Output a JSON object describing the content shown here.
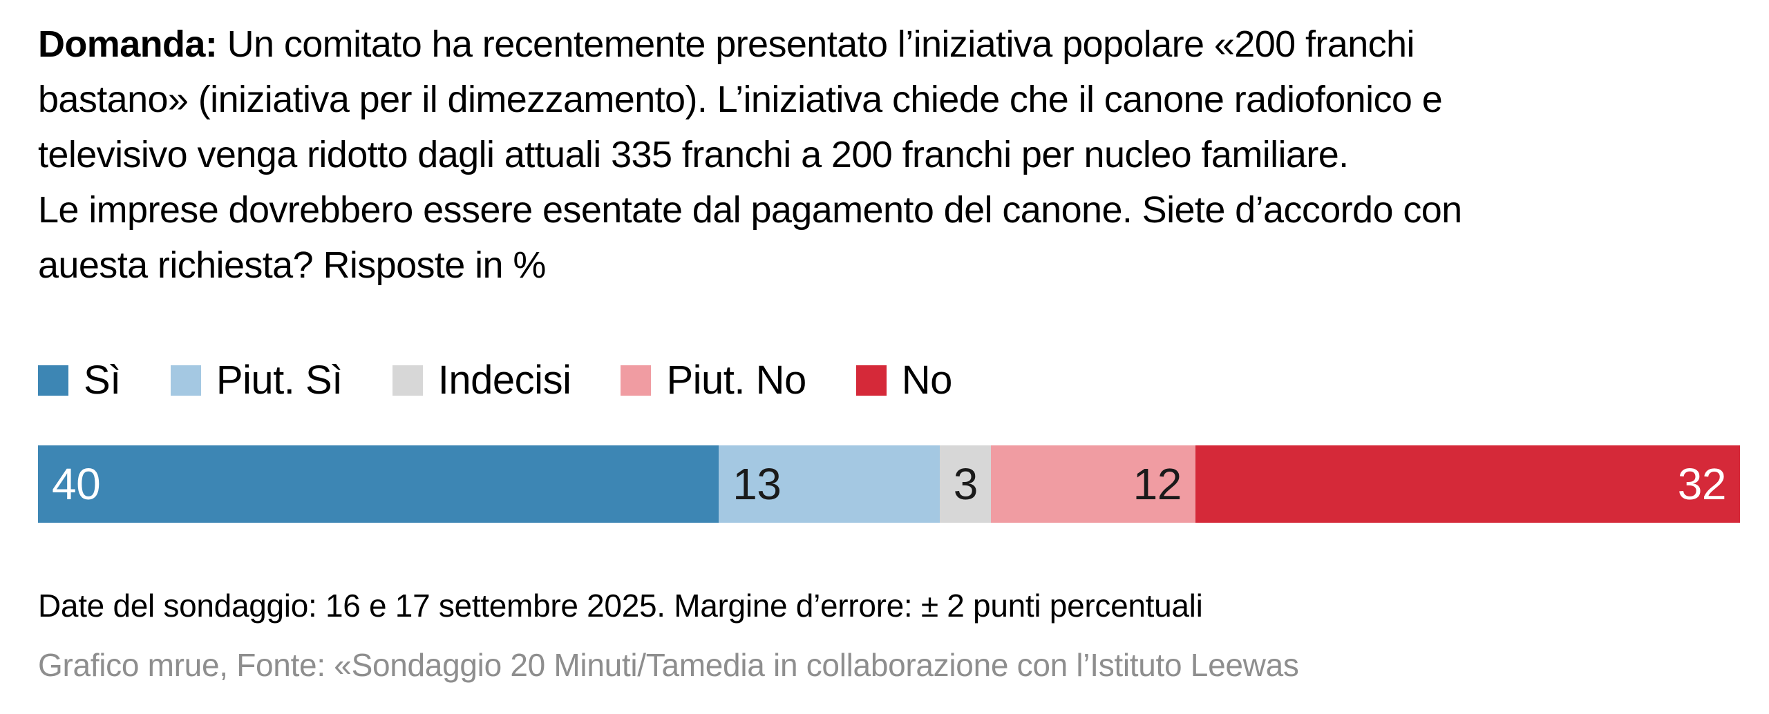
{
  "question": {
    "label": "Domanda:",
    "lines": [
      " Un comitato ha recentemente presentato l’iniziativa popolare «200 franchi",
      "bastano» (iniziativa per il dimezzamento). L’iniziativa chiede che il canone radiofonico e",
      "televisivo venga ridotto dagli attuali 335 franchi a 200 franchi per nucleo familiare.",
      "Le imprese dovrebbero essere esentate dal pagamento del canone. Siete d’accordo con",
      "auesta richiesta? Risposte in %"
    ]
  },
  "chart_data": {
    "type": "bar",
    "orientation": "horizontal-stacked",
    "title": "Domanda: Un comitato ha recentemente presentato l’iniziativa popolare «200 franchi bastano» (iniziativa per il dimezzamento). L’iniziativa chiede che il canone radiofonico e televisivo venga ridotto dagli attuali 335 franchi a 200 franchi per nucleo familiare. Le imprese dovrebbero essere esentate dal pagamento del canone. Siete d’accordo con auesta richiesta? Risposte in %",
    "unit": "%",
    "xlim": [
      0,
      100
    ],
    "grid": false,
    "legend_position": "top",
    "bar_label_position": "inside",
    "categories": [
      "Sì",
      "Piut. Sì",
      "Indecisi",
      "Piut. No",
      "No"
    ],
    "values": [
      40,
      13,
      3,
      12,
      32
    ],
    "total": 100,
    "colors": [
      "#3D86B4",
      "#A4C8E2",
      "#D7D7D7",
      "#F09CA2",
      "#D52939"
    ],
    "label_colors": [
      "#FFFFFF",
      "#1A1A1A",
      "#1A1A1A",
      "#1A1A1A",
      "#FFFFFF"
    ],
    "label_align": [
      "left",
      "left",
      "center",
      "right",
      "right"
    ]
  },
  "footer": {
    "survey_info": "Date del sondaggio: 16 e 17 settembre 2025. Margine d’errore: ± 2 punti percentuali",
    "source": "Grafico mrue, Fonte: «Sondaggio 20 Minuti/Tamedia in collaborazione con l’Istituto Leewas"
  }
}
